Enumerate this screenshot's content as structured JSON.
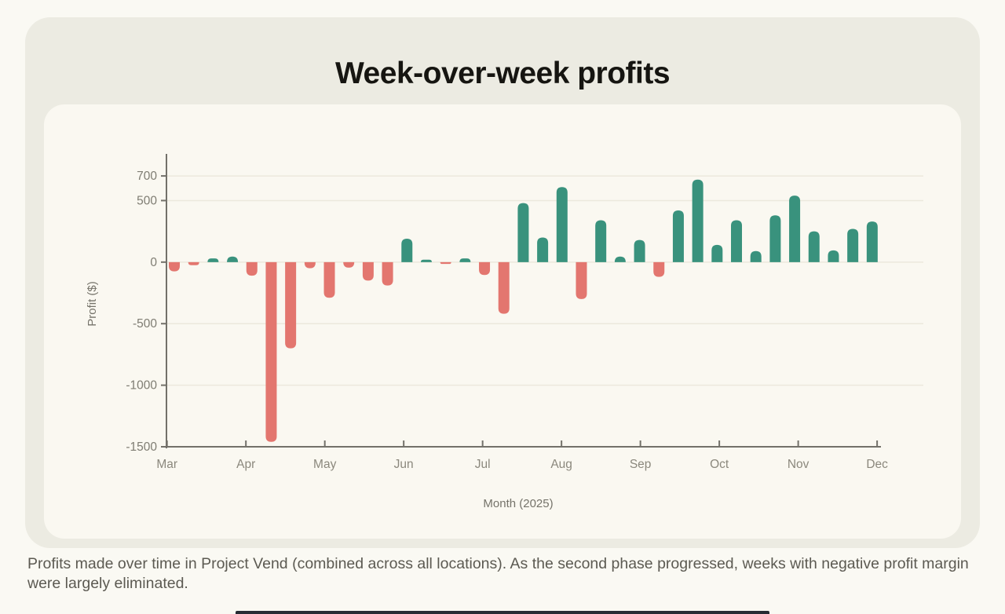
{
  "page": {
    "title": "Week-over-week profits",
    "caption": "Profits made over time in Project Vend (combined across all locations). As the second phase progressed, weeks with negative profit margin were largely eliminated."
  },
  "colors": {
    "page_bg": "#FAF9F3",
    "card_bg": "#ECEBE2",
    "panel_bg": "#FAF8F1",
    "positive": "#39927D",
    "negative": "#E3766F",
    "axis": "#73716A",
    "x_tick_label": "#8B887D",
    "y_tick_label": "#7F7D73",
    "axis_title": "#75736A",
    "grid": "#ECE9DD",
    "title_text": "#161511",
    "caption_text": "#5C5A52"
  },
  "chart_data": {
    "type": "bar",
    "title": "Week-over-week profits",
    "xlabel": "Month (2025)",
    "ylabel": "Profit ($)",
    "x_unit": "week",
    "x_tick_labels": [
      "Mar",
      "Apr",
      "May",
      "Jun",
      "Jul",
      "Aug",
      "Sep",
      "Oct",
      "Nov",
      "Dec"
    ],
    "y_ticks": [
      700,
      500,
      0,
      -500,
      -1000,
      -1500
    ],
    "ylim": [
      -1500,
      860
    ],
    "grid": true,
    "legend": false,
    "values": [
      -75,
      -25,
      30,
      45,
      -110,
      -1460,
      -700,
      -50,
      -290,
      -45,
      -150,
      -190,
      190,
      20,
      -15,
      30,
      -105,
      -420,
      480,
      200,
      610,
      -300,
      340,
      45,
      180,
      -120,
      420,
      670,
      140,
      340,
      90,
      380,
      540,
      250,
      95,
      270,
      330
    ],
    "positive_color": "#39927D",
    "negative_color": "#E3766F"
  }
}
